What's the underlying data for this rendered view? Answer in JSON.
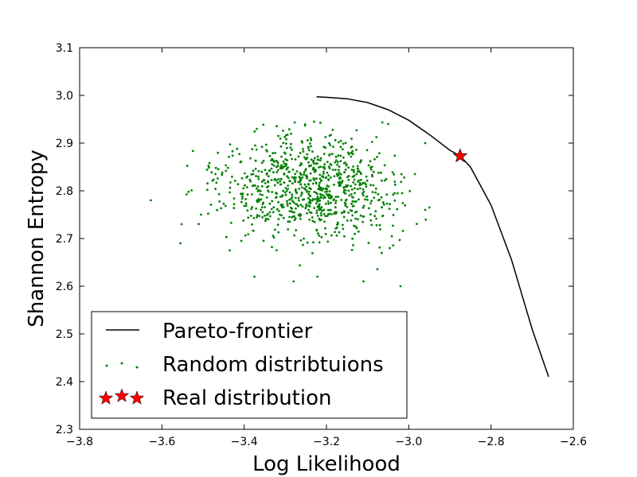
{
  "chart_data": {
    "type": "scatter",
    "xlabel": "Log Likelihood",
    "ylabel": "Shannon Entropy",
    "xlim": [
      -3.8,
      -2.6
    ],
    "ylim": [
      2.3,
      3.1
    ],
    "x_ticks": [
      "−3.8",
      "−3.6",
      "−3.4",
      "−3.2",
      "−3.0",
      "−2.8",
      "−2.6"
    ],
    "y_ticks": [
      "2.3",
      "2.4",
      "2.5",
      "2.6",
      "2.7",
      "2.8",
      "2.9",
      "3.0",
      "3.1"
    ],
    "grid": false,
    "legend_position": "lower-left",
    "series": [
      {
        "name": "Pareto-frontier",
        "kind": "line",
        "color": "#000000",
        "x": [
          -3.224,
          -3.2,
          -3.15,
          -3.1,
          -3.05,
          -3.0,
          -2.95,
          -2.9,
          -2.875,
          -2.85,
          -2.8,
          -2.75,
          -2.7,
          -2.66
        ],
        "y": [
          2.997,
          2.996,
          2.993,
          2.985,
          2.97,
          2.948,
          2.918,
          2.885,
          2.873,
          2.85,
          2.77,
          2.655,
          2.51,
          2.41
        ]
      },
      {
        "name": "Random distribtuions",
        "kind": "scatter",
        "color": "#008000",
        "center": [
          -3.24,
          2.81
        ],
        "spread": [
          0.11,
          0.055
        ],
        "count": 900,
        "x": [
          -3.627,
          -3.552,
          -3.555,
          -3.505,
          -3.47,
          -3.435,
          -3.375,
          -3.28,
          -3.222,
          -3.11,
          -3.02,
          -2.985,
          -2.96,
          -2.95,
          -3.23,
          -3.05,
          -2.96
        ],
        "y": [
          2.78,
          2.73,
          2.69,
          2.75,
          2.835,
          2.675,
          2.62,
          2.61,
          2.62,
          2.61,
          2.6,
          2.835,
          2.76,
          2.765,
          2.945,
          2.94,
          2.9
        ]
      },
      {
        "name": "Real distribution",
        "kind": "marker",
        "marker": "star",
        "color": "#ff0000",
        "x": [
          -2.875
        ],
        "y": [
          2.873
        ]
      }
    ]
  }
}
